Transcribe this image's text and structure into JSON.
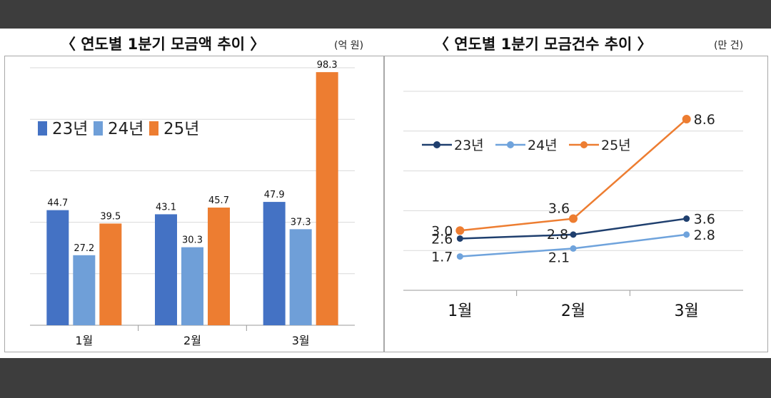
{
  "left": {
    "title": "〈 연도별 1분기 모금액 추이 〉",
    "unit": "(억 원)"
  },
  "right": {
    "title": "〈 연도별 1분기 모금건수 추이 〉",
    "unit": "(만 건)"
  },
  "chart_data": [
    {
      "type": "bar",
      "categories": [
        "1월",
        "2월",
        "3월"
      ],
      "series": [
        {
          "name": "23년",
          "color": "#4472c4",
          "values": [
            44.7,
            43.1,
            47.9
          ]
        },
        {
          "name": "24년",
          "color": "#6f9fd8",
          "values": [
            27.2,
            30.3,
            37.3
          ]
        },
        {
          "name": "25년",
          "color": "#ed7d31",
          "values": [
            39.5,
            45.7,
            98.3
          ]
        }
      ],
      "ylim": [
        0,
        100
      ],
      "grid": true,
      "legend": "top-left"
    },
    {
      "type": "line",
      "categories": [
        "1월",
        "2월",
        "3월"
      ],
      "series": [
        {
          "name": "23년",
          "color": "#1f3f6e",
          "values": [
            2.6,
            2.8,
            3.6
          ]
        },
        {
          "name": "24년",
          "color": "#6fa3dc",
          "values": [
            1.7,
            2.1,
            2.8
          ]
        },
        {
          "name": "25년",
          "color": "#ed7d31",
          "values": [
            3.0,
            3.6,
            8.6
          ]
        }
      ],
      "ylim": [
        0,
        10
      ],
      "grid": true,
      "legend": "top-left"
    }
  ]
}
